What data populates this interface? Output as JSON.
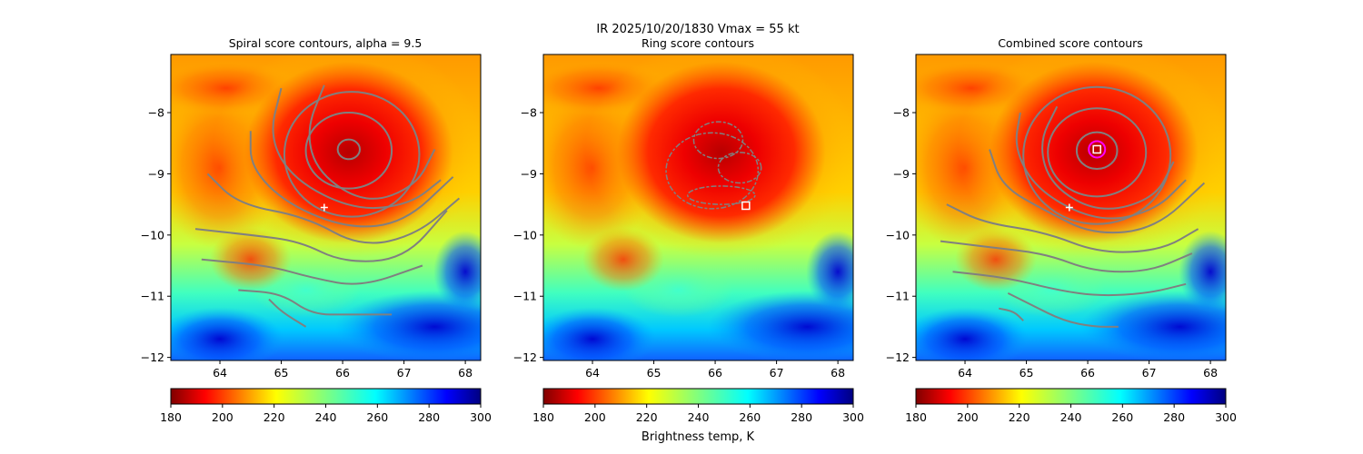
{
  "figure": {
    "suptitle": "IR  2025/10/20/1830    Vmax = 55 kt"
  },
  "chart_data": [
    {
      "type": "heatmap",
      "title": "Spiral score contours, alpha =  9.5",
      "xlim": [
        63.2,
        68.25
      ],
      "ylim": [
        -12.05,
        -7.05
      ],
      "xticks": [
        "64",
        "65",
        "66",
        "67",
        "68"
      ],
      "yticks": [
        "-8",
        "-9",
        "-10",
        "-11",
        "-12"
      ],
      "center_lon": 66.1,
      "center_lat": -8.6,
      "contour_color": "#808080",
      "closed_contours": [
        {
          "cx": 66.1,
          "cy": -8.6,
          "rx": 0.18,
          "ry": 0.16
        },
        {
          "cx": 66.1,
          "cy": -8.62,
          "rx": 0.7,
          "ry": 0.62
        },
        {
          "cx": 66.15,
          "cy": -8.68,
          "rx": 1.1,
          "ry": 1.02
        }
      ],
      "open_contours": [
        [
          [
            65.7,
            -7.55
          ],
          [
            65.4,
            -8.3
          ],
          [
            65.6,
            -9.0
          ],
          [
            66.4,
            -9.5
          ],
          [
            67.2,
            -9.2
          ],
          [
            67.5,
            -8.6
          ]
        ],
        [
          [
            65.0,
            -7.6
          ],
          [
            64.8,
            -8.4
          ],
          [
            65.2,
            -9.1
          ],
          [
            66.2,
            -9.6
          ],
          [
            67.1,
            -9.5
          ],
          [
            67.6,
            -9.1
          ]
        ],
        [
          [
            64.5,
            -8.3
          ],
          [
            64.5,
            -8.9
          ],
          [
            65.1,
            -9.5
          ],
          [
            66.1,
            -9.9
          ],
          [
            67.0,
            -9.8
          ],
          [
            67.8,
            -9.05
          ]
        ],
        [
          [
            63.8,
            -9.0
          ],
          [
            64.3,
            -9.5
          ],
          [
            65.4,
            -9.7
          ],
          [
            66.3,
            -10.2
          ],
          [
            67.2,
            -10.0
          ],
          [
            67.9,
            -9.4
          ]
        ],
        [
          [
            63.6,
            -9.9
          ],
          [
            64.5,
            -10.0
          ],
          [
            65.3,
            -10.1
          ],
          [
            66.0,
            -10.45
          ],
          [
            67.0,
            -10.4
          ],
          [
            67.7,
            -9.6
          ]
        ],
        [
          [
            63.7,
            -10.4
          ],
          [
            64.8,
            -10.5
          ],
          [
            65.5,
            -10.7
          ],
          [
            66.3,
            -10.85
          ],
          [
            67.3,
            -10.5
          ]
        ],
        [
          [
            64.3,
            -10.9
          ],
          [
            65.0,
            -10.95
          ],
          [
            65.5,
            -11.3
          ],
          [
            66.1,
            -11.3
          ],
          [
            66.8,
            -11.3
          ]
        ],
        [
          [
            64.8,
            -11.05
          ],
          [
            65.0,
            -11.25
          ],
          [
            65.4,
            -11.5
          ]
        ]
      ],
      "markers": [
        {
          "symbol": "plus",
          "lon": 65.7,
          "lat": -9.55,
          "color": "#ffffff"
        }
      ],
      "colorbar": {
        "ticks": [
          "180",
          "200",
          "220",
          "240",
          "260",
          "280",
          "300"
        ],
        "label": "",
        "range": [
          180,
          300
        ],
        "colormap": "jet_r"
      }
    },
    {
      "type": "heatmap",
      "title": "Ring score contours",
      "xlim": [
        63.2,
        68.25
      ],
      "ylim": [
        -12.05,
        -7.05
      ],
      "xticks": [
        "64",
        "65",
        "66",
        "67",
        "68"
      ],
      "yticks": [
        "-8",
        "-9",
        "-10",
        "-11",
        "-12"
      ],
      "center_lon": 66.1,
      "center_lat": -8.6,
      "contour_color": "#808080",
      "ring_contours": [
        {
          "cx": 65.95,
          "cy": -8.95,
          "rx": 0.75,
          "ry": 0.62
        },
        {
          "cx": 66.05,
          "cy": -8.45,
          "rx": 0.4,
          "ry": 0.3
        },
        {
          "cx": 66.4,
          "cy": -8.9,
          "rx": 0.35,
          "ry": 0.25
        },
        {
          "cx": 66.1,
          "cy": -9.35,
          "rx": 0.55,
          "ry": 0.15
        }
      ],
      "markers": [
        {
          "symbol": "square",
          "lon": 66.5,
          "lat": -9.52,
          "color": "#ffffff"
        }
      ],
      "colorbar": {
        "ticks": [
          "180",
          "200",
          "220",
          "240",
          "260",
          "280",
          "300"
        ],
        "label": "Brightness temp, K",
        "range": [
          180,
          300
        ],
        "colormap": "jet_r"
      }
    },
    {
      "type": "heatmap",
      "title": "Combined score contours",
      "xlim": [
        63.2,
        68.25
      ],
      "ylim": [
        -12.05,
        -7.05
      ],
      "xticks": [
        "64",
        "65",
        "66",
        "67",
        "68"
      ],
      "yticks": [
        "-8",
        "-9",
        "-10",
        "-11",
        "-12"
      ],
      "center_lon": 66.1,
      "center_lat": -8.6,
      "contour_color": "#808080",
      "closed_contours": [
        {
          "cx": 66.15,
          "cy": -8.62,
          "rx": 0.33,
          "ry": 0.3
        },
        {
          "cx": 66.15,
          "cy": -8.65,
          "rx": 0.8,
          "ry": 0.72
        },
        {
          "cx": 66.15,
          "cy": -8.7,
          "rx": 1.2,
          "ry": 1.12
        }
      ],
      "open_contours": [
        [
          [
            65.5,
            -7.9
          ],
          [
            65.2,
            -8.5
          ],
          [
            65.4,
            -9.2
          ],
          [
            66.2,
            -9.65
          ],
          [
            67.1,
            -9.4
          ],
          [
            67.4,
            -8.8
          ]
        ],
        [
          [
            64.9,
            -8.0
          ],
          [
            64.8,
            -8.6
          ],
          [
            65.2,
            -9.3
          ],
          [
            66.2,
            -9.8
          ],
          [
            67.1,
            -9.6
          ],
          [
            67.6,
            -9.1
          ]
        ],
        [
          [
            64.4,
            -8.6
          ],
          [
            64.6,
            -9.2
          ],
          [
            65.3,
            -9.6
          ],
          [
            66.1,
            -10.0
          ],
          [
            67.1,
            -9.9
          ],
          [
            67.9,
            -9.15
          ]
        ],
        [
          [
            63.7,
            -9.5
          ],
          [
            64.3,
            -9.8
          ],
          [
            65.3,
            -9.95
          ],
          [
            66.2,
            -10.3
          ],
          [
            67.2,
            -10.25
          ],
          [
            67.8,
            -9.9
          ]
        ],
        [
          [
            63.6,
            -10.1
          ],
          [
            64.4,
            -10.2
          ],
          [
            65.3,
            -10.3
          ],
          [
            66.1,
            -10.6
          ],
          [
            67.0,
            -10.6
          ],
          [
            67.7,
            -10.3
          ]
        ],
        [
          [
            63.8,
            -10.6
          ],
          [
            64.7,
            -10.7
          ],
          [
            65.5,
            -10.9
          ],
          [
            66.2,
            -11.0
          ],
          [
            67.0,
            -10.95
          ],
          [
            67.6,
            -10.8
          ]
        ],
        [
          [
            64.7,
            -10.95
          ],
          [
            65.1,
            -11.15
          ],
          [
            65.6,
            -11.4
          ],
          [
            66.1,
            -11.5
          ],
          [
            66.5,
            -11.5
          ]
        ],
        [
          [
            64.55,
            -11.2
          ],
          [
            64.8,
            -11.25
          ],
          [
            64.95,
            -11.4
          ]
        ]
      ],
      "markers": [
        {
          "symbol": "plus",
          "lon": 65.7,
          "lat": -9.55,
          "color": "#ffffff"
        },
        {
          "symbol": "square",
          "lon": 66.15,
          "lat": -8.6,
          "color": "#ffffff"
        },
        {
          "symbol": "circle",
          "lon": 66.15,
          "lat": -8.6,
          "color": "#ff00ff"
        }
      ],
      "colorbar": {
        "ticks": [
          "180",
          "200",
          "220",
          "240",
          "260",
          "280",
          "300"
        ],
        "label": "",
        "range": [
          180,
          300
        ],
        "colormap": "jet_r"
      }
    }
  ]
}
